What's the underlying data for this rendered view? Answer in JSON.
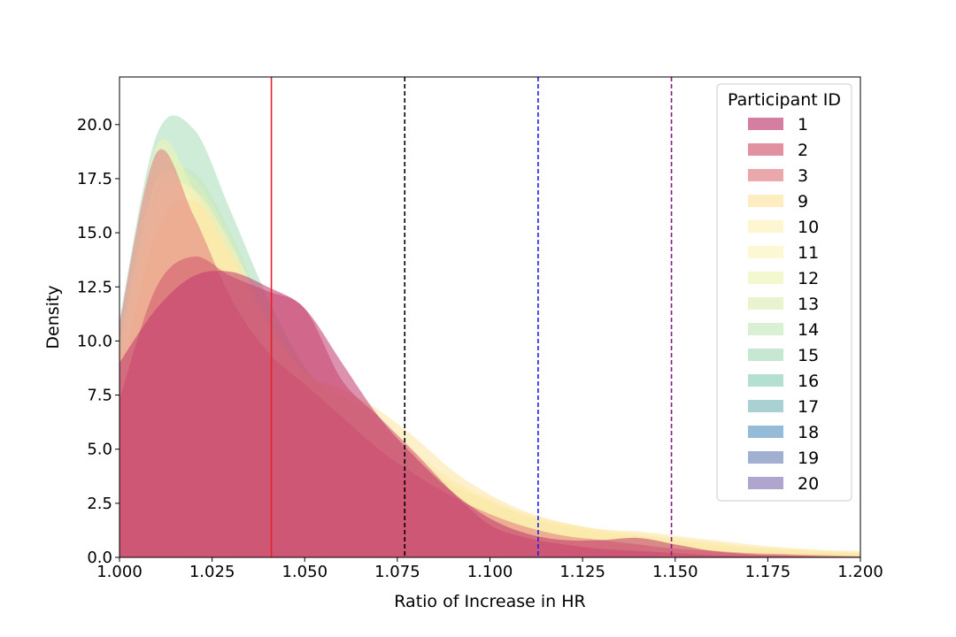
{
  "chart_data": {
    "type": "area",
    "xlabel": "Ratio of Increase in HR",
    "ylabel": "Density",
    "xlim": [
      1.0,
      1.2
    ],
    "ylim": [
      0,
      22.2
    ],
    "x_ticks": [
      "1.000",
      "1.025",
      "1.050",
      "1.075",
      "1.100",
      "1.125",
      "1.150",
      "1.175",
      "1.200"
    ],
    "y_ticks": [
      "0.0",
      "2.5",
      "5.0",
      "7.5",
      "10.0",
      "12.5",
      "15.0",
      "17.5",
      "20.0"
    ],
    "grid": false,
    "legend": {
      "title": "Participant ID",
      "placement": "top-right"
    },
    "vertical_lines": [
      {
        "x": 1.041,
        "color": "#e8202a",
        "style": "solid"
      },
      {
        "x": 1.077,
        "color": "#000000",
        "style": "dashed"
      },
      {
        "x": 1.113,
        "color": "#1f1fe8",
        "style": "dashed"
      },
      {
        "x": 1.149,
        "color": "#8a1a8a",
        "style": "dashed"
      }
    ],
    "x": [
      1.0,
      1.01,
      1.02,
      1.03,
      1.04,
      1.05,
      1.06,
      1.07,
      1.08,
      1.09,
      1.1,
      1.11,
      1.12,
      1.13,
      1.14,
      1.15,
      1.16,
      1.17,
      1.18,
      1.19,
      1.2
    ],
    "series": [
      {
        "name": "1",
        "color": "#c0396e",
        "values": [
          9.0,
          11.5,
          13.0,
          13.2,
          12.5,
          11.5,
          9.0,
          6.5,
          4.6,
          3.0,
          1.8,
          1.1,
          0.8,
          0.8,
          0.9,
          0.6,
          0.3,
          0.15,
          0.1,
          0.05,
          0.03
        ]
      },
      {
        "name": "2",
        "color": "#d2566e",
        "values": [
          7.3,
          12.5,
          13.9,
          13.0,
          12.3,
          11.5,
          8.2,
          6.5,
          4.8,
          3.0,
          1.5,
          0.9,
          0.6,
          0.4,
          0.3,
          0.2,
          0.1,
          0.05,
          0.03,
          0.02,
          0.01
        ]
      },
      {
        "name": "3",
        "color": "#e07a7e",
        "values": [
          10.8,
          18.7,
          15.8,
          12.0,
          9.5,
          8.0,
          6.5,
          5.0,
          3.8,
          2.8,
          2.0,
          1.4,
          1.0,
          0.8,
          0.6,
          0.4,
          0.3,
          0.2,
          0.15,
          0.1,
          0.05
        ]
      },
      {
        "name": "9",
        "color": "#fde3a0",
        "values": [
          8.0,
          15.0,
          16.5,
          14.0,
          10.8,
          8.5,
          7.8,
          6.8,
          5.5,
          4.0,
          2.9,
          2.1,
          1.6,
          1.3,
          1.2,
          1.0,
          0.8,
          0.6,
          0.45,
          0.35,
          0.3
        ]
      },
      {
        "name": "10",
        "color": "#fef0b8",
        "values": [
          9.0,
          16.5,
          17.0,
          14.5,
          11.0,
          8.6,
          7.5,
          6.2,
          4.8,
          3.6,
          2.7,
          2.0,
          1.6,
          1.3,
          1.1,
          0.9,
          0.7,
          0.5,
          0.4,
          0.3,
          0.2
        ]
      },
      {
        "name": "11",
        "color": "#fbf5bc",
        "values": [
          9.5,
          17.5,
          16.5,
          14.0,
          10.8,
          8.4,
          7.2,
          6.0,
          4.6,
          3.4,
          2.6,
          1.9,
          1.5,
          1.2,
          1.0,
          0.8,
          0.6,
          0.45,
          0.35,
          0.25,
          0.2
        ]
      },
      {
        "name": "12",
        "color": "#eef5b6",
        "values": [
          10.0,
          19.0,
          17.0,
          14.0,
          10.5,
          8.2,
          7.0,
          5.8,
          4.5,
          3.4,
          2.6,
          1.9,
          1.5,
          1.2,
          1.0,
          0.8,
          0.6,
          0.45,
          0.35,
          0.25,
          0.2
        ]
      },
      {
        "name": "13",
        "color": "#dbeeb6",
        "values": [
          9.8,
          18.0,
          17.5,
          14.8,
          11.0,
          8.4,
          7.0,
          5.7,
          4.4,
          3.3,
          2.5,
          1.8,
          1.4,
          1.1,
          0.9,
          0.7,
          0.55,
          0.4,
          0.3,
          0.2,
          0.15
        ]
      },
      {
        "name": "14",
        "color": "#c6e8bb",
        "values": [
          9.5,
          17.0,
          17.8,
          15.0,
          11.2,
          8.6,
          7.0,
          5.6,
          4.3,
          3.2,
          2.4,
          1.8,
          1.4,
          1.1,
          0.9,
          0.7,
          0.5,
          0.4,
          0.3,
          0.2,
          0.15
        ]
      },
      {
        "name": "15",
        "color": "#a8dcba",
        "values": [
          11.0,
          19.5,
          19.8,
          16.0,
          12.0,
          8.8,
          7.0,
          5.6,
          4.3,
          3.3,
          2.5,
          1.9,
          1.4,
          1.1,
          0.9,
          0.7,
          0.5,
          0.4,
          0.3,
          0.2,
          0.15
        ]
      },
      {
        "name": "16",
        "color": "#8acfb9",
        "values": [
          9.0,
          16.0,
          16.5,
          14.0,
          10.8,
          8.2,
          6.8,
          5.4,
          4.2,
          3.2,
          2.4,
          1.8,
          1.3,
          1.0,
          0.8,
          0.6,
          0.45,
          0.35,
          0.25,
          0.2,
          0.1
        ]
      },
      {
        "name": "17",
        "color": "#7bb8bd",
        "values": [
          8.5,
          15.0,
          15.5,
          13.5,
          10.5,
          8.0,
          6.6,
          5.3,
          4.1,
          3.1,
          2.3,
          1.7,
          1.3,
          1.0,
          0.8,
          0.6,
          0.45,
          0.35,
          0.25,
          0.2,
          0.1
        ]
      },
      {
        "name": "18",
        "color": "#5e97c5",
        "values": [
          8.0,
          14.5,
          15.0,
          13.0,
          10.2,
          7.8,
          6.4,
          5.2,
          4.0,
          3.0,
          2.2,
          1.6,
          1.2,
          0.9,
          0.7,
          0.55,
          0.4,
          0.3,
          0.2,
          0.15,
          0.1
        ]
      },
      {
        "name": "19",
        "color": "#6f86b8",
        "values": [
          8.0,
          14.0,
          14.8,
          12.8,
          10.0,
          7.6,
          6.2,
          5.0,
          3.9,
          2.9,
          2.1,
          1.5,
          1.1,
          0.85,
          0.7,
          0.5,
          0.4,
          0.3,
          0.2,
          0.15,
          0.1
        ]
      },
      {
        "name": "20",
        "color": "#8475b5",
        "values": [
          7.8,
          13.8,
          14.5,
          12.6,
          9.8,
          7.4,
          6.0,
          4.8,
          3.7,
          2.8,
          2.0,
          1.4,
          1.0,
          0.8,
          0.6,
          0.45,
          0.35,
          0.25,
          0.18,
          0.12,
          0.08
        ]
      }
    ]
  }
}
